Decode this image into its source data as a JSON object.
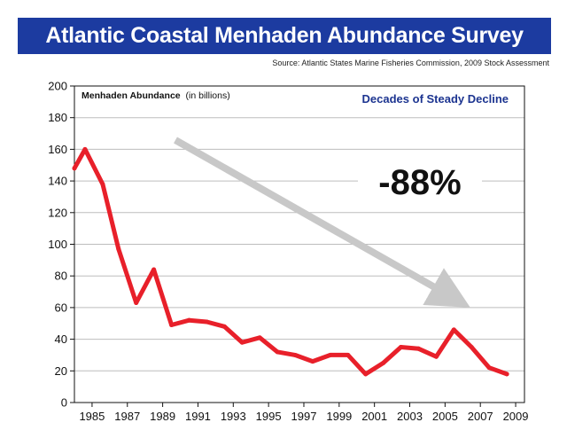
{
  "chart_data": {
    "type": "line",
    "title": "Atlantic Coastal Menhaden Abundance Survey",
    "source": "Source: Atlantic States Marine Fisheries Commission, 2009 Stock Assessment",
    "subtitle": "Decades of Steady Decline",
    "ylabel_main": "Menhaden Abundance",
    "ylabel_unit": "(in billions)",
    "annotation": "-88%",
    "ylim": [
      0,
      200
    ],
    "y_ticks": [
      0,
      20,
      40,
      60,
      80,
      100,
      120,
      140,
      160,
      180,
      200
    ],
    "xlim": [
      1984,
      2009.5
    ],
    "x_ticks": [
      1985,
      1987,
      1989,
      1991,
      1993,
      1995,
      1997,
      1999,
      2001,
      2003,
      2005,
      2007,
      2009
    ],
    "grid": true,
    "line_color": "#e8202a",
    "arrow_color": "#c8c8c8",
    "series": [
      {
        "x": [
          1984,
          1984.6,
          1985.6,
          1986.5,
          1987.5,
          1988.5,
          1989.5,
          1990.5,
          1991.5,
          1992.5,
          1993.5,
          1994.5,
          1995.5,
          1996.5,
          1997.5,
          1998.5,
          1999.5,
          2000.5,
          2001.5,
          2002.5,
          2003.5,
          2004.5,
          2005.5,
          2006.5,
          2007.5,
          2008.5
        ],
        "values": [
          148,
          160,
          138,
          97,
          63,
          84,
          49,
          52,
          51,
          48,
          38,
          41,
          32,
          30,
          26,
          30,
          30,
          18,
          25,
          35,
          34,
          29,
          46,
          35,
          22,
          18
        ]
      }
    ]
  }
}
